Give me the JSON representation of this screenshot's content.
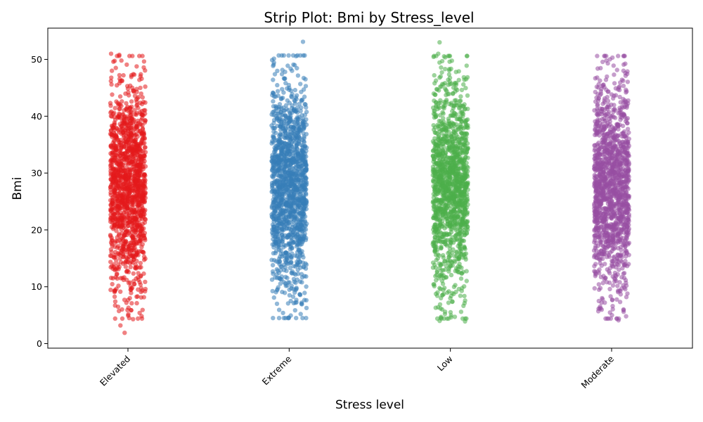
{
  "chart_data": {
    "type": "scatter",
    "subtype": "strip",
    "title": "Strip Plot: Bmi by Stress_level",
    "xlabel": "Stress level",
    "ylabel": "Bmi",
    "ylim": [
      -0.8,
      55.5
    ],
    "yticks": [
      0,
      10,
      20,
      30,
      40,
      50
    ],
    "grid": false,
    "categories": [
      "Elevated",
      "Extreme",
      "Low",
      "Moderate"
    ],
    "colors": [
      "#e41a1c",
      "#377eb8",
      "#4daf4a",
      "#984ea3"
    ],
    "series": [
      {
        "values_summary": {
          "min": 1.9,
          "q1": 21.5,
          "median": 27.8,
          "q3": 33.5,
          "max": 51.0
        },
        "outliers_high": [
          51.0,
          50.8,
          49.6,
          48.5,
          47.4,
          47.2,
          46.6,
          46.2,
          45.8,
          45.3,
          45.0,
          44.5,
          44.2
        ],
        "outliers_low": [
          1.9,
          3.2,
          4.3,
          4.5,
          5.4,
          6.3,
          6.7,
          7.1,
          7.4,
          7.7,
          8.0,
          8.3,
          8.9,
          9.3,
          9.6
        ]
      },
      {
        "values_summary": {
          "min": 4.6,
          "q1": 21.6,
          "median": 27.8,
          "q3": 33.6,
          "max": 53.1
        },
        "outliers_high": [
          53.1,
          48.0,
          47.8,
          47.4,
          46.5,
          45.3,
          45.0,
          44.4
        ],
        "outliers_low": [
          4.6,
          5.2,
          5.4,
          7.0,
          7.2,
          7.5,
          8.1,
          8.5,
          9.0,
          9.4,
          9.8
        ]
      },
      {
        "values_summary": {
          "min": 3.9,
          "q1": 21.5,
          "median": 27.8,
          "q3": 33.5,
          "max": 53.0
        },
        "outliers_high": [
          53.0,
          51.0,
          49.7,
          48.3,
          47.2,
          46.8,
          46.4,
          45.8,
          45.2,
          44.6
        ],
        "outliers_low": [
          3.9,
          4.0,
          4.7,
          5.2,
          5.6,
          6.3,
          6.9,
          7.4,
          8.0,
          8.4,
          9.0,
          9.6
        ]
      },
      {
        "values_summary": {
          "min": 4.1,
          "q1": 21.5,
          "median": 27.8,
          "q3": 33.5,
          "max": 50.0
        },
        "outliers_high": [
          50.0,
          49.8,
          49.3,
          48.9,
          48.0,
          47.6,
          46.8,
          46.4,
          45.8,
          45.3,
          44.8,
          44.2
        ],
        "outliers_low": [
          4.1,
          4.8,
          5.0,
          5.7,
          6.0,
          6.2,
          6.6,
          7.2,
          7.7,
          8.2,
          8.8,
          9.5
        ]
      }
    ]
  }
}
